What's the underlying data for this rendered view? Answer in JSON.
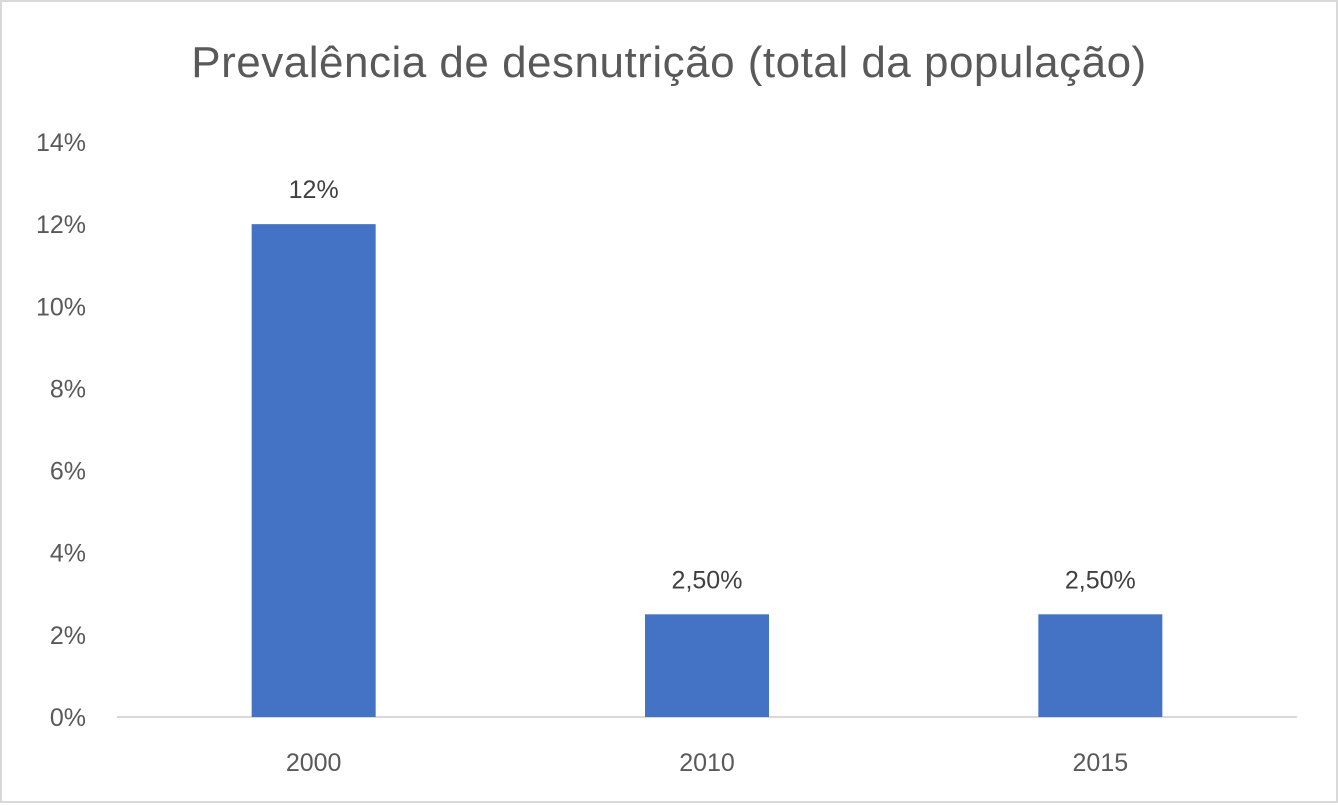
{
  "chart_data": {
    "type": "bar",
    "title": "Prevalência de desnutrição (total da população)",
    "categories": [
      "2000",
      "2010",
      "2015"
    ],
    "values": [
      0.12,
      0.025,
      0.025
    ],
    "data_labels": [
      "12%",
      "2,50%",
      "2,50%"
    ],
    "xlabel": "",
    "ylabel": "",
    "ylim": [
      0,
      0.14
    ],
    "yticks": [
      0,
      0.02,
      0.04,
      0.06,
      0.08,
      0.1,
      0.12,
      0.14
    ],
    "ytick_labels": [
      "0%",
      "2%",
      "4%",
      "6%",
      "8%",
      "10%",
      "12%",
      "14%"
    ],
    "grid": false,
    "legend": "none",
    "colors": {
      "bar": "#4472C4",
      "axis": "#d9d9d9",
      "text": "#595959"
    }
  }
}
